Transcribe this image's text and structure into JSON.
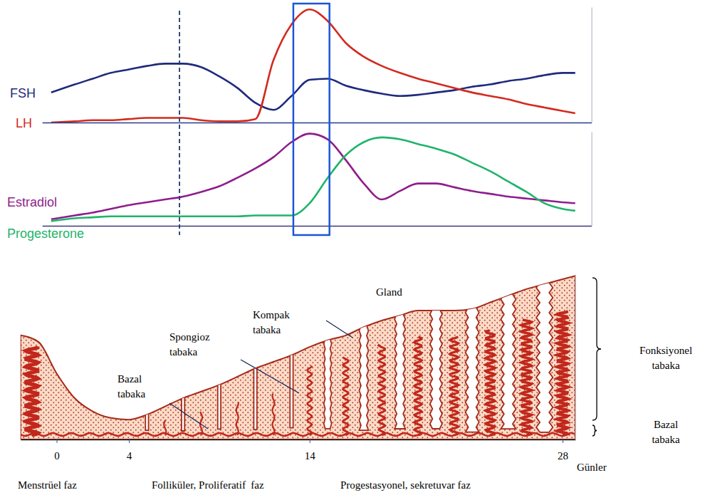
{
  "chart_data": [
    {
      "type": "line",
      "x": [
        -0.3,
        1,
        2,
        3,
        4,
        5,
        6,
        7,
        8,
        9,
        10,
        11,
        12,
        13,
        14,
        15,
        16,
        17,
        18,
        19,
        20,
        21,
        22,
        23,
        24,
        25,
        26,
        27,
        28,
        28.7
      ],
      "series": [
        {
          "name": "FSH",
          "color": "#1f2a7c",
          "values": [
            26,
            33,
            38,
            43,
            46,
            49,
            51,
            51,
            48,
            40,
            30,
            17,
            11,
            23,
            37,
            38,
            32,
            28,
            25,
            23,
            24,
            26,
            28,
            31,
            33,
            36,
            38,
            41,
            43,
            43
          ]
        },
        {
          "name": "LH",
          "color": "#d22b1f",
          "values": [
            0,
            1,
            2,
            2,
            3,
            4,
            4,
            4,
            2,
            1,
            1,
            3,
            54,
            85,
            98,
            88,
            69,
            57,
            49,
            43,
            38,
            34,
            30,
            26,
            23,
            20,
            16,
            13,
            10,
            8
          ]
        }
      ],
      "xlim": [
        -0.8,
        29.6
      ],
      "ylim": [
        0,
        100
      ],
      "tick_labels": false,
      "band": [
        13.1,
        15.1
      ],
      "vline": 6.8
    },
    {
      "type": "line",
      "x": [
        -0.3,
        1,
        2,
        3,
        4,
        5,
        6,
        7,
        8,
        9,
        10,
        11,
        12,
        13,
        14,
        15,
        16,
        17,
        18,
        19,
        20,
        21,
        22,
        23,
        24,
        25,
        26,
        27,
        28,
        28.7
      ],
      "series": [
        {
          "name": "Estradiol",
          "color": "#8e1e8c",
          "values": [
            7,
            11,
            14,
            18,
            22,
            25,
            28,
            31,
            36,
            42,
            51,
            61,
            73,
            89,
            98,
            92,
            70,
            45,
            28,
            37,
            45,
            45,
            41,
            37,
            34,
            31,
            29,
            27,
            25,
            24
          ]
        },
        {
          "name": "Progesterone",
          "color": "#1fb46a",
          "values": [
            5,
            8,
            9,
            10,
            10,
            10,
            10,
            10,
            10,
            10,
            10,
            11,
            11,
            11,
            24,
            51,
            75,
            89,
            94,
            92,
            87,
            82,
            76,
            67,
            58,
            47,
            36,
            24,
            18,
            16
          ]
        }
      ],
      "xlim": [
        -0.8,
        29.6
      ],
      "ylim": [
        0,
        100
      ],
      "tick_labels": false
    },
    {
      "type": "area",
      "x": [
        -2,
        -1,
        0,
        1,
        2,
        3,
        4,
        5,
        6,
        7,
        8,
        9,
        10,
        11,
        12,
        13,
        14,
        15,
        16,
        17,
        18,
        19,
        20,
        21,
        22,
        23,
        24,
        25,
        26,
        27,
        28,
        28.7
      ],
      "values": [
        63,
        59,
        40,
        25,
        17,
        13,
        12,
        15,
        20,
        25,
        29,
        33,
        38,
        43,
        47,
        51,
        56,
        60,
        63,
        68,
        72,
        75,
        78,
        78,
        78,
        79,
        83,
        87,
        91,
        94,
        97,
        99
      ],
      "color": "#a52a1a",
      "xlim": [
        -2,
        28.7
      ],
      "ylim": [
        0,
        100
      ],
      "xticks": [
        0,
        4,
        14,
        28
      ],
      "tick_labels": "x",
      "xlabel": "Günler",
      "annotations": [
        "Gland",
        "Kompak tabaka",
        "Spongioz tabaka",
        "Bazal tabaka",
        "Fonksiyonel tabaka",
        "Bazal tabaka",
        "Menstrüel faz",
        "Folliküler, Proliferatif  faz",
        "Progestasyonel, sekretuvar faz"
      ]
    }
  ]
}
